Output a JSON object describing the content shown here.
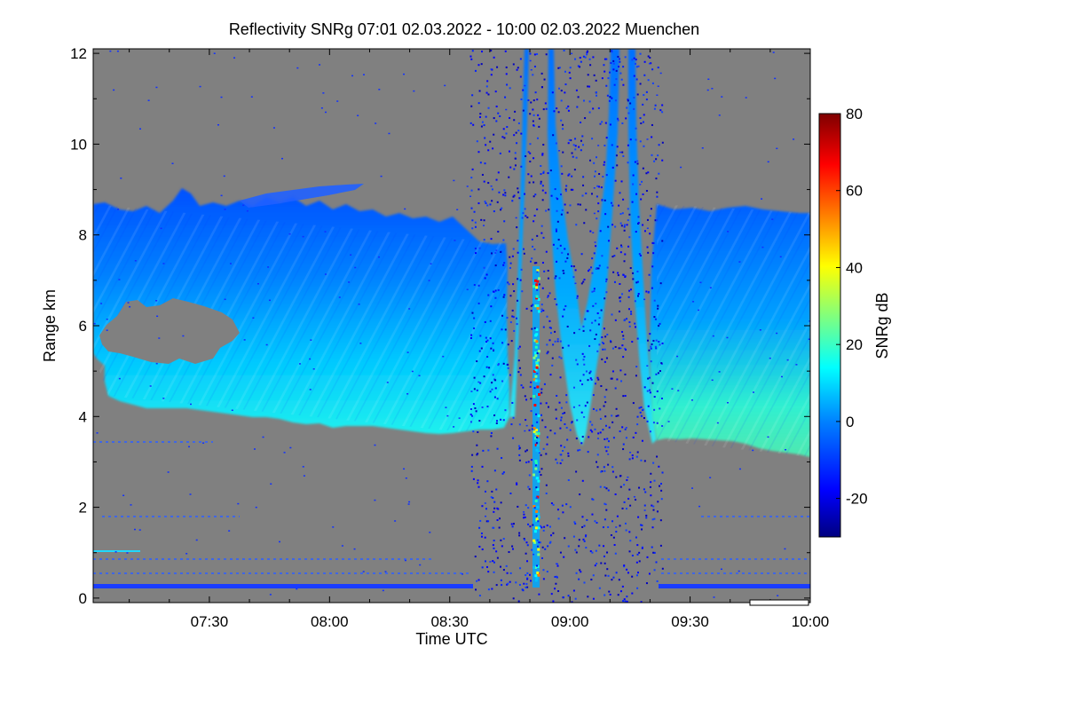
{
  "chart_data": {
    "type": "heatmap",
    "title": "Reflectivity SNRg   07:01 02.03.2022 - 10:00 02.03.2022 Muenchen",
    "xlabel": "Time UTC",
    "ylabel": "Range km",
    "x_ticks": [
      "07:30",
      "08:00",
      "08:30",
      "09:00",
      "09:30",
      "10:00"
    ],
    "x_tick_minutes": [
      30,
      60,
      90,
      120,
      150,
      180
    ],
    "xlim_minutes": [
      1,
      180
    ],
    "y_ticks": [
      0,
      2,
      4,
      6,
      8,
      10,
      12
    ],
    "ylim": [
      -0.1,
      12.1
    ],
    "colorbar": {
      "label": "SNRg dB",
      "ticks": [
        -20,
        0,
        20,
        40,
        60,
        80
      ],
      "range": [
        -30,
        80
      ]
    },
    "colors": {
      "background": "#808080",
      "no_data": "#808080",
      "colormap": [
        "#00007f",
        "#0000ff",
        "#007fff",
        "#00ffff",
        "#7fff7f",
        "#ffff00",
        "#ff7f00",
        "#ff0000",
        "#7f0000"
      ]
    },
    "features": {
      "main_cloud_layer": {
        "description_minutes": [
          1,
          105
        ],
        "top_km": [
          8.4,
          8.3,
          7.9,
          7.7,
          7.6
        ],
        "base_km": [
          5.2,
          4.4,
          4.1,
          3.9,
          3.8
        ],
        "typical_snr_db": [
          -10,
          15
        ]
      },
      "late_cloud_layer": {
        "minutes": [
          145,
          180
        ],
        "top_km": 8.3,
        "base_km": [
          3.5,
          3.2
        ],
        "typical_snr_db": [
          -10,
          20
        ]
      },
      "surface_line_km": 0.25,
      "hook_features_minutes": [
        108,
        115,
        124,
        130,
        135,
        141
      ]
    }
  }
}
